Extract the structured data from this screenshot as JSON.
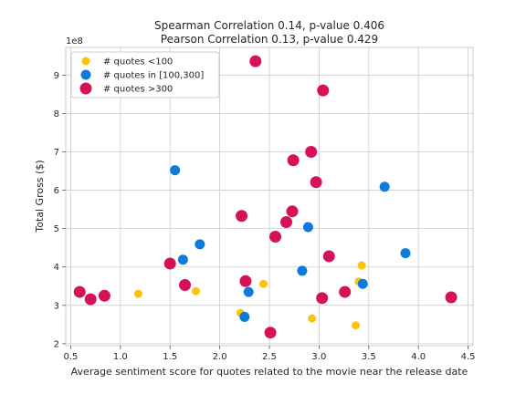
{
  "chart_data": {
    "type": "scatter",
    "title_lines": [
      "Spearman Correlation 0.14, p-value 0.406",
      "Pearson Correlation 0.13, p-value 0.429"
    ],
    "xlabel": "Average sentiment score for quotes related to the movie near the release date",
    "ylabel": "Total Gross ($)",
    "y_offset_text": "1e8",
    "xlim": [
      0.45,
      4.55
    ],
    "ylim": [
      1.95,
      9.72
    ],
    "x_ticks": [
      0.5,
      1.0,
      1.5,
      2.0,
      2.5,
      3.0,
      3.5,
      4.0,
      4.5
    ],
    "x_tick_labels": [
      "0.5",
      "1.0",
      "1.5",
      "2.0",
      "2.5",
      "3.0",
      "3.5",
      "4.0",
      "4.5"
    ],
    "y_ticks": [
      2,
      3,
      4,
      5,
      6,
      7,
      8,
      9
    ],
    "y_tick_labels": [
      "2",
      "3",
      "4",
      "5",
      "6",
      "7",
      "8",
      "9"
    ],
    "grid": true,
    "legend_position": "top-left",
    "series": [
      {
        "name": "# quotes <100",
        "color": "#FFC20A",
        "marker_size": "small",
        "points": [
          [
            1.18,
            3.3
          ],
          [
            1.76,
            3.37
          ],
          [
            2.21,
            2.8
          ],
          [
            2.44,
            3.56
          ],
          [
            2.93,
            2.66
          ],
          [
            3.37,
            2.48
          ],
          [
            3.4,
            3.62
          ],
          [
            3.43,
            4.04
          ]
        ]
      },
      {
        "name": "# quotes in [100,300]",
        "color": "#0C7BDC",
        "marker_size": "medium",
        "points": [
          [
            1.55,
            6.52
          ],
          [
            1.63,
            4.19
          ],
          [
            1.8,
            4.59
          ],
          [
            2.25,
            2.7
          ],
          [
            2.29,
            3.35
          ],
          [
            2.83,
            3.9
          ],
          [
            2.89,
            5.04
          ],
          [
            3.44,
            3.56
          ],
          [
            3.66,
            6.09
          ],
          [
            3.87,
            4.36
          ]
        ]
      },
      {
        "name": "# quotes >300",
        "color": "#D41159",
        "marker_size": "large",
        "points": [
          [
            0.59,
            3.35
          ],
          [
            0.7,
            3.16
          ],
          [
            0.84,
            3.25
          ],
          [
            1.5,
            4.09
          ],
          [
            1.65,
            3.53
          ],
          [
            2.22,
            5.33
          ],
          [
            2.26,
            3.63
          ],
          [
            2.36,
            9.36
          ],
          [
            2.51,
            2.29
          ],
          [
            2.56,
            4.79
          ],
          [
            2.67,
            5.17
          ],
          [
            2.73,
            5.45
          ],
          [
            2.74,
            6.78
          ],
          [
            2.92,
            7.0
          ],
          [
            2.97,
            6.21
          ],
          [
            3.03,
            3.19
          ],
          [
            3.04,
            8.6
          ],
          [
            3.1,
            4.28
          ],
          [
            3.26,
            3.35
          ],
          [
            4.33,
            3.21
          ]
        ]
      }
    ]
  }
}
